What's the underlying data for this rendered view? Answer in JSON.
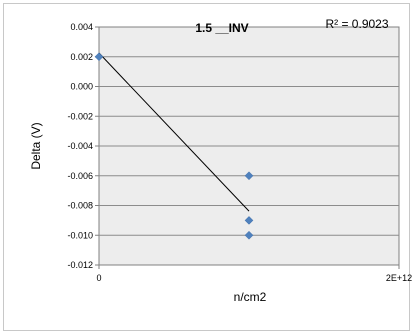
{
  "chart_data": {
    "type": "scatter",
    "title": "1.5 __INV",
    "xlabel": "n/cm2",
    "ylabel": "Delta (V)",
    "xlim": [
      0,
      2000000000000
    ],
    "ylim": [
      -0.012,
      0.004
    ],
    "x_ticks": [
      0,
      2000000000000
    ],
    "x_tick_labels": [
      "0",
      "2E+12"
    ],
    "y_ticks": [
      0.004,
      0.002,
      0.0,
      -0.002,
      -0.004,
      -0.006,
      -0.008,
      -0.01,
      -0.012
    ],
    "y_tick_labels": [
      "0.004",
      "0.002",
      "0.000",
      "-0.002",
      "-0.004",
      "-0.006",
      "-0.008",
      "-0.010",
      "-0.012"
    ],
    "grid": "horizontal",
    "legend": "none",
    "marker_color": "#4f81bd",
    "plot_background": "#ededed",
    "series": [
      {
        "points": [
          {
            "x": 0,
            "y": 0.002
          },
          {
            "x": 1000000000000,
            "y": -0.006
          },
          {
            "x": 1000000000000,
            "y": -0.009
          },
          {
            "x": 1000000000000,
            "y": -0.01
          }
        ]
      }
    ],
    "trendline": {
      "type": "linear",
      "x_range": [
        0,
        1000000000000
      ],
      "y_values": [
        0.00225,
        -0.00838
      ]
    },
    "annotation": "R² = 0.9023"
  }
}
